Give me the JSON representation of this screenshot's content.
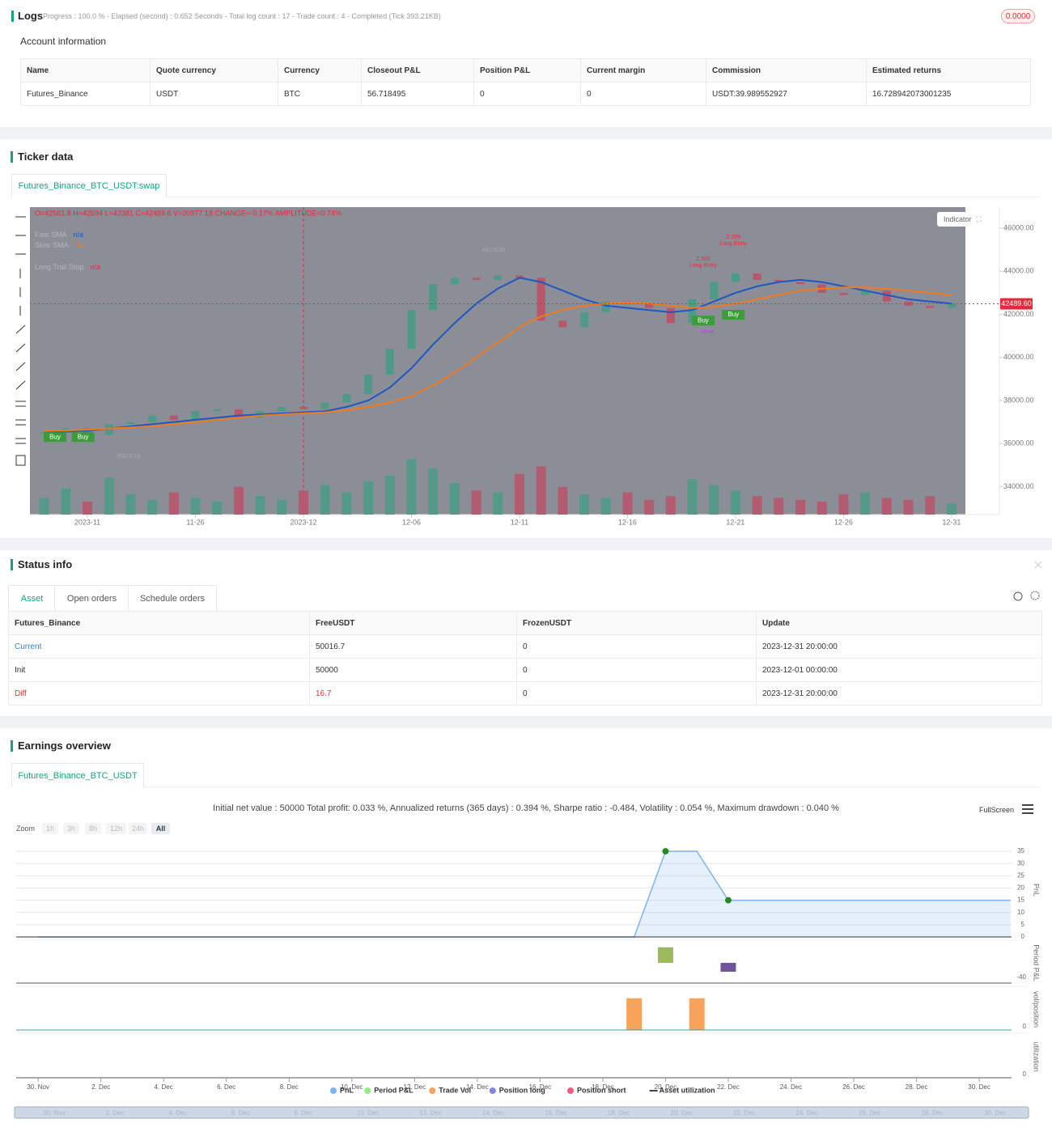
{
  "logs": {
    "title": "Logs",
    "progress": "Progress : 100.0 % - Elapsed (second) : 0.652 Seconds - Total log count : 17 - Trade count : 4 - Completed (Tick 393.21KB)",
    "badge": "0.0000",
    "account_title": "Account information",
    "table": {
      "headers": [
        "Name",
        "Quote currency",
        "Currency",
        "Closeout P&L",
        "Position P&L",
        "Current margin",
        "Commission",
        "Estimated returns"
      ],
      "rows": [
        [
          "Futures_Binance",
          "USDT",
          "BTC",
          "56.718495",
          "0",
          "0",
          "USDT:39.989552927",
          "16.728942073001235"
        ]
      ]
    }
  },
  "ticker": {
    "title": "Ticker data",
    "tab": "Futures_Binance_BTC_USDT:swap",
    "indicator_button": "Indicator"
  },
  "status": {
    "title": "Status info",
    "tabs": [
      "Asset",
      "Open orders",
      "Schedule orders"
    ],
    "table": {
      "headers": [
        "Futures_Binance",
        "FreeUSDT",
        "FrozenUSDT",
        "Update"
      ],
      "rows": [
        [
          "Current",
          "50016.7",
          "0",
          "2023-12-31 20:00:00"
        ],
        [
          "Init",
          "50000",
          "0",
          "2023-12-01 00:00:00"
        ],
        [
          "Diff",
          "16.7",
          "0",
          "2023-12-31 20:00:00"
        ]
      ]
    }
  },
  "earnings": {
    "title": "Earnings overview",
    "tab": "Futures_Binance_BTC_USDT",
    "summary": "Initial net value : 50000 Total profit: 0.033 %, Annualized returns (365 days) : 0.394 %, Sharpe ratio : -0.484, Volatility : 0.054 %, Maximum drawdown : 0.040 %",
    "fullscreen": "FullScreen",
    "zoom_label": "Zoom",
    "zoom_buttons": [
      "1h",
      "3h",
      "8h",
      "12h",
      "24h",
      "All"
    ]
  },
  "chart_data": [
    {
      "type": "candlestick",
      "legend_ohlc": "O=42561.8 H=42694 L=42381 C=42489.6 V=20977.18 CHANGE=-0.17% AMPLITUDE=0.74%",
      "background": "#8c8e97",
      "up_color": "#4f9a86",
      "down_color": "#b8566a",
      "close": [
        36500,
        36700,
        36400,
        36900,
        37000,
        37300,
        37100,
        37500,
        37600,
        37200,
        37500,
        37700,
        37600,
        37900,
        38300,
        39200,
        40400,
        42200,
        43400,
        43700,
        43600,
        43800,
        43700,
        41700,
        41400,
        42100,
        42600,
        42500,
        42300,
        41600,
        42700,
        43500,
        43900,
        43600,
        43500,
        43400,
        43000,
        42900,
        43100,
        42600,
        42400,
        42300,
        42490
      ],
      "volume": [
        9000,
        14000,
        7000,
        20000,
        11000,
        8000,
        12000,
        9000,
        7000,
        15000,
        10000,
        8000,
        13000,
        16000,
        12000,
        18000,
        21000,
        30000,
        25000,
        17000,
        13000,
        12000,
        22000,
        26000,
        15000,
        11000,
        9000,
        12000,
        8000,
        10000,
        19000,
        16000,
        13000,
        10000,
        9000,
        8000,
        7000,
        11000,
        12000,
        9000,
        8000,
        10000,
        6000
      ],
      "volume_lim": [
        0,
        35000
      ],
      "series": [
        {
          "name": "Fast SMA",
          "legend_value": "n/a",
          "color": "#1d57c4",
          "values": [
            36500,
            36550,
            36600,
            36700,
            36800,
            36900,
            37000,
            37100,
            37200,
            37300,
            37350,
            37400,
            37450,
            37500,
            37700,
            38000,
            38600,
            39500,
            40600,
            41600,
            42500,
            43200,
            43700,
            43500,
            43100,
            42700,
            42400,
            42300,
            42200,
            42100,
            42200,
            42600,
            43000,
            43300,
            43500,
            43600,
            43500,
            43300,
            43100,
            42900,
            42700,
            42600,
            42500
          ]
        },
        {
          "name": "Slow SMA",
          "legend_value": "n/a",
          "color": "#f07a1e",
          "values": [
            36600,
            36600,
            36650,
            36700,
            36750,
            36800,
            36900,
            37000,
            37100,
            37200,
            37300,
            37350,
            37400,
            37450,
            37550,
            37700,
            37900,
            38200,
            38700,
            39300,
            40000,
            40700,
            41400,
            41900,
            42200,
            42400,
            42500,
            42550,
            42500,
            42400,
            42300,
            42350,
            42500,
            42700,
            42900,
            43100,
            43200,
            43250,
            43250,
            43200,
            43100,
            43000,
            42900
          ]
        }
      ],
      "legend_extra": {
        "name": "Long Trail Stop",
        "value": "n/a",
        "color": "#d9344a"
      },
      "xlim": [
        -0.66,
        42.64
      ],
      "xticks": [
        {
          "value": 2,
          "label": "2023-11"
        },
        {
          "value": 7,
          "label": "11-26"
        },
        {
          "value": 12,
          "label": "2023-12"
        },
        {
          "value": 17,
          "label": "12-06"
        },
        {
          "value": 22,
          "label": "12-11"
        },
        {
          "value": 27,
          "label": "12-16"
        },
        {
          "value": 32,
          "label": "12-21"
        },
        {
          "value": 37,
          "label": "12-26"
        },
        {
          "value": 42,
          "label": "12-31"
        }
      ],
      "ylim": [
        32700,
        46980
      ],
      "yticks": [
        {
          "value": 34000,
          "label": "34000.00"
        },
        {
          "value": 36000,
          "label": "36000.00"
        },
        {
          "value": 38000,
          "label": "38000.00"
        },
        {
          "value": 40000,
          "label": "40000.00"
        },
        {
          "value": 42000,
          "label": "42000.00"
        },
        {
          "value": 44000,
          "label": "44000.00"
        },
        {
          "value": 46000,
          "label": "46000.00"
        }
      ],
      "last_price": {
        "value": 42489.6,
        "label": "42489.60"
      },
      "annotations": [
        {
          "text": "Buy",
          "x": 0.5,
          "y": 36300,
          "color": "#ffffff",
          "box": "#3a9d3a"
        },
        {
          "text": "Buy",
          "x": 1.8,
          "y": 36300,
          "color": "#ffffff",
          "box": "#3a9d3a"
        },
        {
          "text": "Buy",
          "x": 30.5,
          "y": 41710,
          "color": "#ffffff",
          "box": "#3a9d3a"
        },
        {
          "text": "Buy",
          "x": 31.9,
          "y": 41980,
          "color": "#ffffff",
          "box": "#3a9d3a"
        },
        {
          "text": "2.325",
          "x": 30.5,
          "y": 44570,
          "color": "#e8283c"
        },
        {
          "text": "Long Entry",
          "x": 30.5,
          "y": 44270,
          "color": "#e8283c"
        },
        {
          "text": "2.295",
          "x": 31.9,
          "y": 45590,
          "color": "#e8283c"
        },
        {
          "text": "Long Entry",
          "x": 31.9,
          "y": 45290,
          "color": "#e8283c"
        },
        {
          "text": "close",
          "x": 30.7,
          "y": 41190,
          "color": "#c03ce0"
        },
        {
          "text": "44176.90",
          "x": 20.8,
          "y": 44980,
          "color": "#a8aab2"
        },
        {
          "text": "35610.10",
          "x": 3.9,
          "y": 35400,
          "color": "#a8aab2"
        }
      ]
    },
    {
      "type": "line",
      "x": [
        0,
        19,
        20,
        21,
        22,
        31
      ],
      "series": [
        {
          "name": "PnL",
          "color": "#7cb5ec",
          "values": [
            0,
            0,
            35,
            35,
            15,
            15
          ]
        }
      ],
      "ylabel": "PnL",
      "xlim": [
        -0.7,
        31.03
      ],
      "xticks": [
        {
          "value": 0,
          "label": "30. Nov"
        },
        {
          "value": 2,
          "label": "2. Dec"
        },
        {
          "value": 4,
          "label": "4. Dec"
        },
        {
          "value": 6,
          "label": "6. Dec"
        },
        {
          "value": 8,
          "label": "8. Dec"
        },
        {
          "value": 10,
          "label": "10. Dec"
        },
        {
          "value": 12,
          "label": "12. Dec"
        },
        {
          "value": 14,
          "label": "14. Dec"
        },
        {
          "value": 16,
          "label": "16. Dec"
        },
        {
          "value": 18,
          "label": "18. Dec"
        },
        {
          "value": 20,
          "label": "20. Dec"
        },
        {
          "value": 22,
          "label": "22. Dec"
        },
        {
          "value": 24,
          "label": "24. Dec"
        },
        {
          "value": 26,
          "label": "26. Dec"
        },
        {
          "value": 28,
          "label": "28. Dec"
        },
        {
          "value": 30,
          "label": "30. Dec"
        }
      ],
      "ylim": [
        0,
        38
      ],
      "yticks": [
        0,
        5,
        10,
        15,
        20,
        25,
        30,
        35
      ],
      "grid": true,
      "panels": [
        {
          "type": "bar",
          "name": "Period P&L",
          "ylabel": "Period P&L",
          "x": [
            20,
            22
          ],
          "values": [
            35,
            -20
          ],
          "colors": [
            "#9bbb59",
            "#6f5499"
          ],
          "ylim": [
            -45.5,
            45.5
          ],
          "yticks": [
            -40
          ]
        },
        {
          "type": "bar",
          "name": "Trade Vol",
          "ylabel": "vol/position",
          "x": [
            19,
            21
          ],
          "values": [
            1,
            1
          ],
          "colors": [
            "#f7a35c",
            "#f7a35c"
          ],
          "ylim": [
            0,
            1.3
          ],
          "yticks": [
            0
          ]
        },
        {
          "type": "empty",
          "ylabel": "utilization",
          "ylim": [
            0,
            1
          ],
          "yticks": [
            0
          ]
        }
      ],
      "legend": [
        {
          "name": "PnL",
          "color": "#7cb5ec",
          "symbol": "circle"
        },
        {
          "name": "Period P&L",
          "color": "#90ed7d",
          "symbol": "circle"
        },
        {
          "name": "Trade Vol",
          "color": "#f7a35c",
          "symbol": "circle"
        },
        {
          "name": "Position long",
          "color": "#8085e9",
          "symbol": "circle"
        },
        {
          "name": "Position short",
          "color": "#f15c80",
          "symbol": "circle"
        },
        {
          "name": "Asset utilization",
          "color": "#434348",
          "symbol": "line"
        }
      ]
    }
  ]
}
